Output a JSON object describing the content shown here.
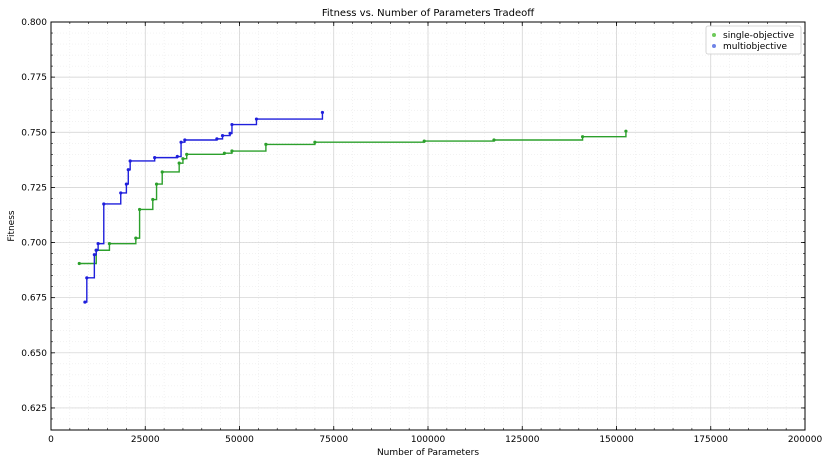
{
  "chart_data": {
    "type": "line",
    "title": "Fitness vs. Number of Parameters Tradeoff",
    "xlabel": "Number of Parameters",
    "ylabel": "Fitness",
    "xlim": [
      0,
      200000
    ],
    "ylim": [
      0.615,
      0.8
    ],
    "x_ticks": [
      0,
      25000,
      50000,
      75000,
      100000,
      125000,
      150000,
      175000,
      200000
    ],
    "y_ticks": [
      0.625,
      0.65,
      0.675,
      0.7,
      0.725,
      0.75,
      0.775,
      0.8
    ],
    "x_tick_labels": [
      "0",
      "25000",
      "50000",
      "75000",
      "100000",
      "125000",
      "150000",
      "175000",
      "200000"
    ],
    "y_tick_labels": [
      "0.625",
      "0.650",
      "0.675",
      "0.700",
      "0.725",
      "0.750",
      "0.775",
      "0.800"
    ],
    "grid": true,
    "minor_grid": true,
    "legend_position": "top-right",
    "step_style": "post",
    "series": [
      {
        "name": "single-objective",
        "color": "#2ca02c",
        "legend_color": "#6ec95a",
        "x": [
          7500,
          12000,
          15500,
          22500,
          23500,
          27000,
          28000,
          29500,
          34000,
          35000,
          36000,
          46000,
          48000,
          57000,
          70000,
          99000,
          117500,
          141000,
          152500
        ],
        "y": [
          0.6905,
          0.6965,
          0.6995,
          0.702,
          0.715,
          0.7195,
          0.7265,
          0.732,
          0.736,
          0.738,
          0.74,
          0.7405,
          0.7415,
          0.7445,
          0.7455,
          0.746,
          0.7465,
          0.748,
          0.7505
        ]
      },
      {
        "name": "multiobjective",
        "color": "#1f1fdc",
        "legend_color": "#6f83e6",
        "x": [
          9000,
          9500,
          11500,
          12000,
          12500,
          14000,
          18500,
          20000,
          20500,
          21000,
          27500,
          33500,
          34500,
          35500,
          44000,
          45500,
          47500,
          48000,
          54500,
          72000
        ],
        "y": [
          0.673,
          0.684,
          0.6945,
          0.6965,
          0.6995,
          0.7175,
          0.7225,
          0.7265,
          0.733,
          0.737,
          0.7385,
          0.739,
          0.7455,
          0.7465,
          0.747,
          0.7485,
          0.7495,
          0.7535,
          0.756,
          0.759
        ]
      }
    ]
  }
}
